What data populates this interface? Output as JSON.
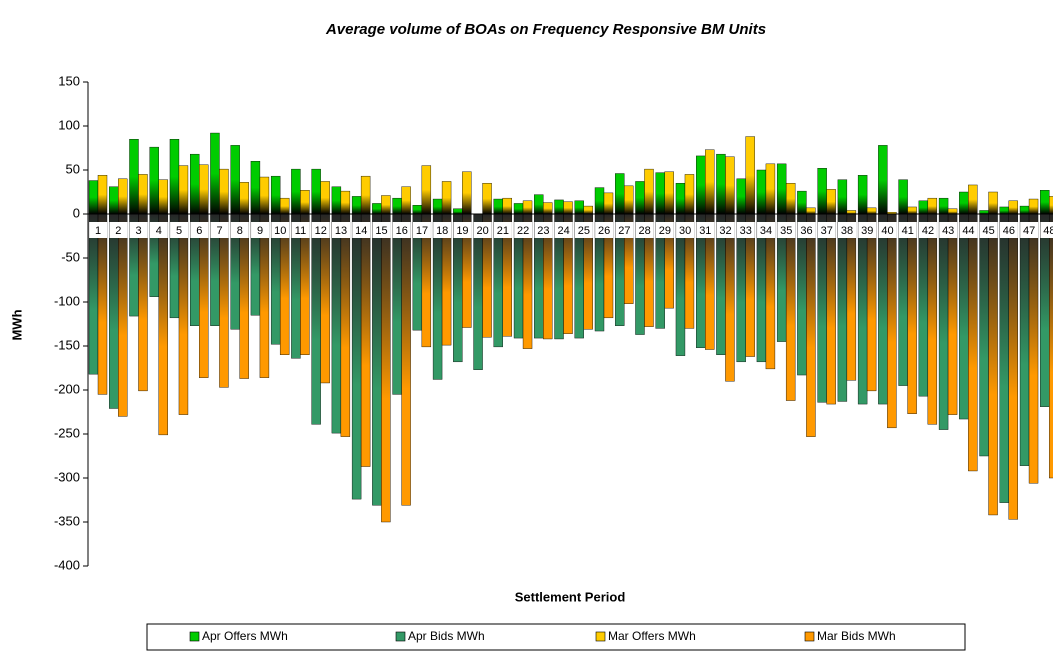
{
  "chart_data": {
    "type": "bar",
    "title": "Average volume of BOAs on Frequency Responsive BM Units",
    "x_label": "Settlement Period",
    "y_label": "MWh",
    "categories": [
      "1",
      "2",
      "3",
      "4",
      "5",
      "6",
      "7",
      "8",
      "9",
      "10",
      "11",
      "12",
      "13",
      "14",
      "15",
      "16",
      "17",
      "18",
      "19",
      "20",
      "21",
      "22",
      "23",
      "24",
      "25",
      "26",
      "27",
      "28",
      "29",
      "30",
      "31",
      "32",
      "33",
      "34",
      "35",
      "36",
      "37",
      "38",
      "39",
      "40",
      "41",
      "42",
      "43",
      "44",
      "45",
      "46",
      "47",
      "48"
    ],
    "ylim": [
      -400,
      150
    ],
    "yticks": [
      -400,
      -350,
      -300,
      -250,
      -200,
      -150,
      -100,
      -50,
      0,
      50,
      100,
      150
    ],
    "series": [
      {
        "name": "Apr Offers MWh",
        "color": "#00cc00",
        "slot": 0,
        "values": [
          38,
          31,
          85,
          76,
          85,
          68,
          92,
          78,
          60,
          43,
          51,
          51,
          31,
          20,
          12,
          18,
          10,
          17,
          6,
          0,
          17,
          12,
          22,
          16,
          15,
          30,
          46,
          37,
          47,
          35,
          66,
          68,
          40,
          50,
          57,
          26,
          52,
          39,
          44,
          78,
          39,
          15,
          18,
          25,
          4,
          8,
          9,
          27
        ]
      },
      {
        "name": "Apr Bids MWh",
        "color": "#339966",
        "slot": 0,
        "values": [
          -182,
          -221,
          -116,
          -94,
          -118,
          -127,
          -127,
          -131,
          -115,
          -148,
          -164,
          -239,
          -249,
          -324,
          -331,
          -205,
          -132,
          -188,
          -168,
          -177,
          -151,
          -141,
          -141,
          -142,
          -141,
          -133,
          -127,
          -137,
          -130,
          -161,
          -152,
          -160,
          -168,
          -168,
          -145,
          -183,
          -214,
          -213,
          -216,
          -216,
          -195,
          -207,
          -245,
          -233,
          -275,
          -328,
          -286,
          -219
        ]
      },
      {
        "name": "Mar Offers MWh",
        "color": "#ffcc00",
        "slot": 1,
        "values": [
          44,
          40,
          45,
          39,
          55,
          56,
          51,
          36,
          42,
          18,
          27,
          37,
          26,
          43,
          21,
          31,
          55,
          37,
          48,
          35,
          18,
          15,
          13,
          14,
          9,
          24,
          32,
          51,
          48,
          45,
          73,
          65,
          88,
          57,
          35,
          7,
          28,
          4,
          7,
          2,
          8,
          18,
          6,
          33,
          25,
          15,
          17,
          20
        ]
      },
      {
        "name": "Mar Bids MWh",
        "color": "#ff9900",
        "slot": 1,
        "values": [
          -205,
          -230,
          -201,
          -251,
          -228,
          -186,
          -197,
          -187,
          -186,
          -160,
          -160,
          -192,
          -253,
          -287,
          -350,
          -331,
          -151,
          -149,
          -129,
          -140,
          -139,
          -153,
          -142,
          -136,
          -131,
          -118,
          -102,
          -128,
          -107,
          -130,
          -154,
          -190,
          -162,
          -176,
          -212,
          -253,
          -216,
          -189,
          -201,
          -243,
          -227,
          -239,
          -228,
          -292,
          -342,
          -347,
          -306,
          -300
        ]
      }
    ]
  }
}
